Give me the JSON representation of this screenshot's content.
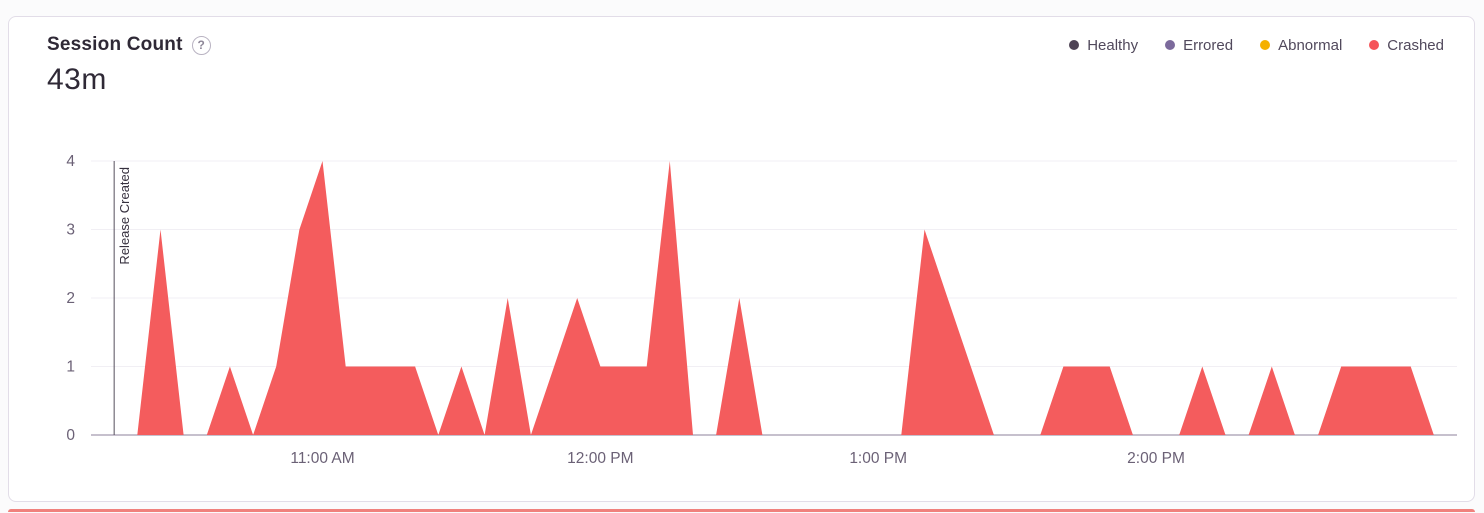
{
  "header": {
    "title": "Session Count",
    "help_glyph": "?",
    "total": "43m"
  },
  "chart_data": {
    "type": "area",
    "title": "Session Count",
    "total_label": "43m",
    "xlabel": "",
    "ylabel": "",
    "ylim": [
      0,
      4
    ],
    "y_ticks": [
      0,
      1,
      2,
      3,
      4
    ],
    "x_domain": [
      "10:10 AM",
      "3:05 PM"
    ],
    "x_ticks": [
      "11:00 AM",
      "12:00 PM",
      "1:00 PM",
      "2:00 PM"
    ],
    "grid": true,
    "legend_position": "top-right",
    "legend": [
      {
        "label": "Healthy",
        "color": "#4e4355"
      },
      {
        "label": "Errored",
        "color": "#7c6a9c"
      },
      {
        "label": "Abnormal",
        "color": "#f5b000"
      },
      {
        "label": "Crashed",
        "color": "#f55459"
      }
    ],
    "annotations": [
      {
        "type": "vertical-line",
        "x": "10:15 AM",
        "label": "Release Created"
      }
    ],
    "series": [
      {
        "name": "Crashed",
        "color": "#f45c5d",
        "points": [
          [
            "10:15 AM",
            0
          ],
          [
            "10:20 AM",
            0
          ],
          [
            "10:25 AM",
            3
          ],
          [
            "10:30 AM",
            0
          ],
          [
            "10:35 AM",
            0
          ],
          [
            "10:40 AM",
            1
          ],
          [
            "10:45 AM",
            0
          ],
          [
            "10:50 AM",
            1
          ],
          [
            "10:55 AM",
            3
          ],
          [
            "11:00 AM",
            4
          ],
          [
            "11:05 AM",
            1
          ],
          [
            "11:10 AM",
            1
          ],
          [
            "11:15 AM",
            1
          ],
          [
            "11:20 AM",
            1
          ],
          [
            "11:25 AM",
            0
          ],
          [
            "11:30 AM",
            1
          ],
          [
            "11:35 AM",
            0
          ],
          [
            "11:40 AM",
            2
          ],
          [
            "11:45 AM",
            0
          ],
          [
            "11:50 AM",
            1
          ],
          [
            "11:55 AM",
            2
          ],
          [
            "12:00 PM",
            1
          ],
          [
            "12:05 PM",
            1
          ],
          [
            "12:10 PM",
            1
          ],
          [
            "12:15 PM",
            4
          ],
          [
            "12:20 PM",
            0
          ],
          [
            "12:25 PM",
            0
          ],
          [
            "12:30 PM",
            2
          ],
          [
            "12:35 PM",
            0
          ],
          [
            "12:40 PM",
            0
          ],
          [
            "12:45 PM",
            0
          ],
          [
            "12:50 PM",
            0
          ],
          [
            "12:55 PM",
            0
          ],
          [
            "1:00 PM",
            0
          ],
          [
            "1:05 PM",
            0
          ],
          [
            "1:10 PM",
            3
          ],
          [
            "1:15 PM",
            2
          ],
          [
            "1:20 PM",
            1
          ],
          [
            "1:25 PM",
            0
          ],
          [
            "1:30 PM",
            0
          ],
          [
            "1:35 PM",
            0
          ],
          [
            "1:40 PM",
            1
          ],
          [
            "1:45 PM",
            1
          ],
          [
            "1:50 PM",
            1
          ],
          [
            "1:55 PM",
            0
          ],
          [
            "2:00 PM",
            0
          ],
          [
            "2:05 PM",
            0
          ],
          [
            "2:10 PM",
            1
          ],
          [
            "2:15 PM",
            0
          ],
          [
            "2:20 PM",
            0
          ],
          [
            "2:25 PM",
            1
          ],
          [
            "2:30 PM",
            0
          ],
          [
            "2:35 PM",
            0
          ],
          [
            "2:40 PM",
            1
          ],
          [
            "2:45 PM",
            1
          ],
          [
            "2:50 PM",
            1
          ],
          [
            "2:55 PM",
            1
          ],
          [
            "3:00 PM",
            0
          ]
        ]
      }
    ]
  }
}
